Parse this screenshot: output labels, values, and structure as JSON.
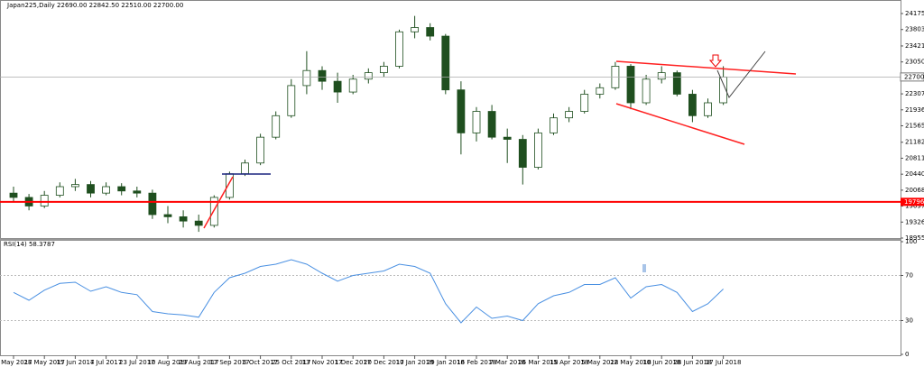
{
  "chart_data": [
    {
      "type": "candlestick",
      "title": "Japan225,Daily  22690.00 22842.50 22510.00 22700.00",
      "categories": [
        "9 May 2017",
        null,
        "28 May 2017",
        null,
        "15 Jun 2017",
        null,
        "4 Jul 2017",
        null,
        "23 Jul 2017",
        null,
        "10 Aug 2017",
        null,
        "29 Aug 2017",
        null,
        "17 Sep 2017",
        null,
        "6 Oct 2017",
        null,
        "25 Oct 2017",
        null,
        "13 Nov 2017",
        null,
        "1 Dec 2017",
        null,
        "20 Dec 2017",
        null,
        "10 Jan 2018",
        null,
        "29 Jan 2018",
        null,
        "16 Feb 2018",
        null,
        "7 Mar 2018",
        null,
        "26 Mar 2018",
        null,
        "15 Apr 2018",
        null,
        "5 May 2018",
        null,
        "22 May 2018",
        null,
        "10 Jun 2018",
        null,
        "28 Jun 2018",
        null,
        "17 Jul 2018"
      ],
      "open": [
        20000,
        19900,
        19700,
        19950,
        20150,
        20200,
        20000,
        20150,
        20050,
        20000,
        19500,
        19450,
        19350,
        19250,
        19900,
        20450,
        20700,
        21300,
        21800,
        22500,
        22850,
        22600,
        22350,
        22650,
        22800,
        22950,
        23750,
        23850,
        23650,
        22400,
        21400,
        21900,
        21300,
        21250,
        20600,
        21400,
        21750,
        21900,
        22300,
        22450,
        22950,
        22100,
        22650,
        22800,
        22300,
        21800,
        22100
      ],
      "high": [
        20150,
        19980,
        20050,
        20250,
        20330,
        20280,
        20250,
        20230,
        20150,
        20080,
        19700,
        19600,
        19500,
        19950,
        20500,
        20780,
        21380,
        21900,
        22650,
        23300,
        22950,
        22800,
        22750,
        22900,
        23050,
        23800,
        24120,
        23950,
        23700,
        22600,
        22000,
        22050,
        21500,
        21350,
        21500,
        21850,
        22000,
        22400,
        22550,
        23050,
        23000,
        22750,
        22950,
        22850,
        22400,
        22200,
        22950
      ],
      "low": [
        19800,
        19600,
        19650,
        19900,
        20050,
        19900,
        19950,
        19950,
        19900,
        19400,
        19300,
        19200,
        19100,
        19200,
        19850,
        20400,
        20650,
        21250,
        21750,
        22300,
        22400,
        22100,
        22300,
        22550,
        22700,
        22900,
        23600,
        23550,
        22300,
        20900,
        21200,
        21250,
        20700,
        20200,
        20550,
        21350,
        21650,
        21850,
        22200,
        22400,
        21950,
        22050,
        22550,
        22250,
        21650,
        21750,
        22050
      ],
      "close": [
        19900,
        19700,
        19950,
        20150,
        20200,
        20000,
        20150,
        20050,
        20000,
        19500,
        19450,
        19350,
        19250,
        19900,
        20450,
        20700,
        21300,
        21800,
        22500,
        22850,
        22600,
        22350,
        22650,
        22800,
        22950,
        23750,
        23850,
        23650,
        22400,
        21400,
        21900,
        21300,
        21250,
        20600,
        21400,
        21750,
        21900,
        22300,
        22450,
        22950,
        22100,
        22650,
        22800,
        22300,
        21800,
        22100,
        22700
      ],
      "bull_color": "#ffffff",
      "bear_color": "#1f4f1f",
      "outline_color": "#1f4f1f",
      "ylim": [
        18934,
        24490
      ],
      "yticks": [
        24175.15,
        {
          "value": 23803.9,
          "label": "23803.90"
        },
        {
          "value": 23421.4,
          "label": "23421.40"
        },
        23050.15,
        22307.65,
        {
          "value": 21936.4,
          "label": "21936.40"
        },
        21565.15,
        21182.65,
        {
          "value": 20811.4,
          "label": "20811.40"
        },
        20440.15,
        {
          "value": 20068.9,
          "label": "20068.90"
        },
        19697.65,
        {
          "value": 19326.4,
          "label": "19326.40"
        },
        18955.15
      ],
      "current_price": {
        "value": 22700,
        "label": "22700.00"
      },
      "support_line": {
        "value": 19796.79,
        "color": "#ff0000"
      }
    },
    {
      "type": "line",
      "title": "RSI(14) 58.3787",
      "color": "#4a90e2",
      "values": [
        55,
        48,
        57,
        63,
        64,
        56,
        60,
        55,
        53,
        38,
        36,
        35,
        33,
        55,
        68,
        72,
        78,
        80,
        84,
        80,
        72,
        65,
        70,
        72,
        74,
        80,
        78,
        72,
        45,
        28,
        42,
        32,
        34,
        30,
        45,
        52,
        55,
        62,
        62,
        68,
        50,
        60,
        62,
        55,
        38,
        45,
        58
      ],
      "ylim": [
        0,
        100
      ],
      "yticks": [
        100,
        70,
        30,
        0
      ],
      "levels": [
        70,
        30
      ]
    }
  ]
}
